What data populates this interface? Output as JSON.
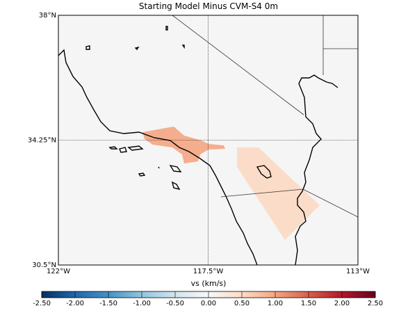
{
  "map": {
    "title": "Starting Model Minus CVM-S4 0m",
    "lon_range": [
      -122,
      -113
    ],
    "lat_range": [
      30.5,
      38
    ],
    "lon_ticks": [
      {
        "value": -122,
        "label": "122°W"
      },
      {
        "value": -117.5,
        "label": "117.5°W"
      },
      {
        "value": -113,
        "label": "113°W"
      }
    ],
    "lat_ticks": [
      {
        "value": 38,
        "label": "38°N"
      },
      {
        "value": 34.25,
        "label": "34.25°N"
      },
      {
        "value": 30.5,
        "label": "30.5°N"
      }
    ],
    "colorbar": {
      "label": "vs (km/s)",
      "lim": [
        -2.5,
        2.5
      ],
      "ticks": [
        {
          "value": -2.5,
          "label": "-2.50"
        },
        {
          "value": -2,
          "label": "-2.00"
        },
        {
          "value": -1.5,
          "label": "-1.50"
        },
        {
          "value": -1,
          "label": "-1.00"
        },
        {
          "value": -0.5,
          "label": "-0.50"
        },
        {
          "value": 0,
          "label": "0.00"
        },
        {
          "value": 0.5,
          "label": "0.50"
        },
        {
          "value": 1,
          "label": "1.00"
        },
        {
          "value": 1.5,
          "label": "1.50"
        },
        {
          "value": 2,
          "label": "2.00"
        },
        {
          "value": 2.5,
          "label": "2.50"
        }
      ]
    }
  }
}
